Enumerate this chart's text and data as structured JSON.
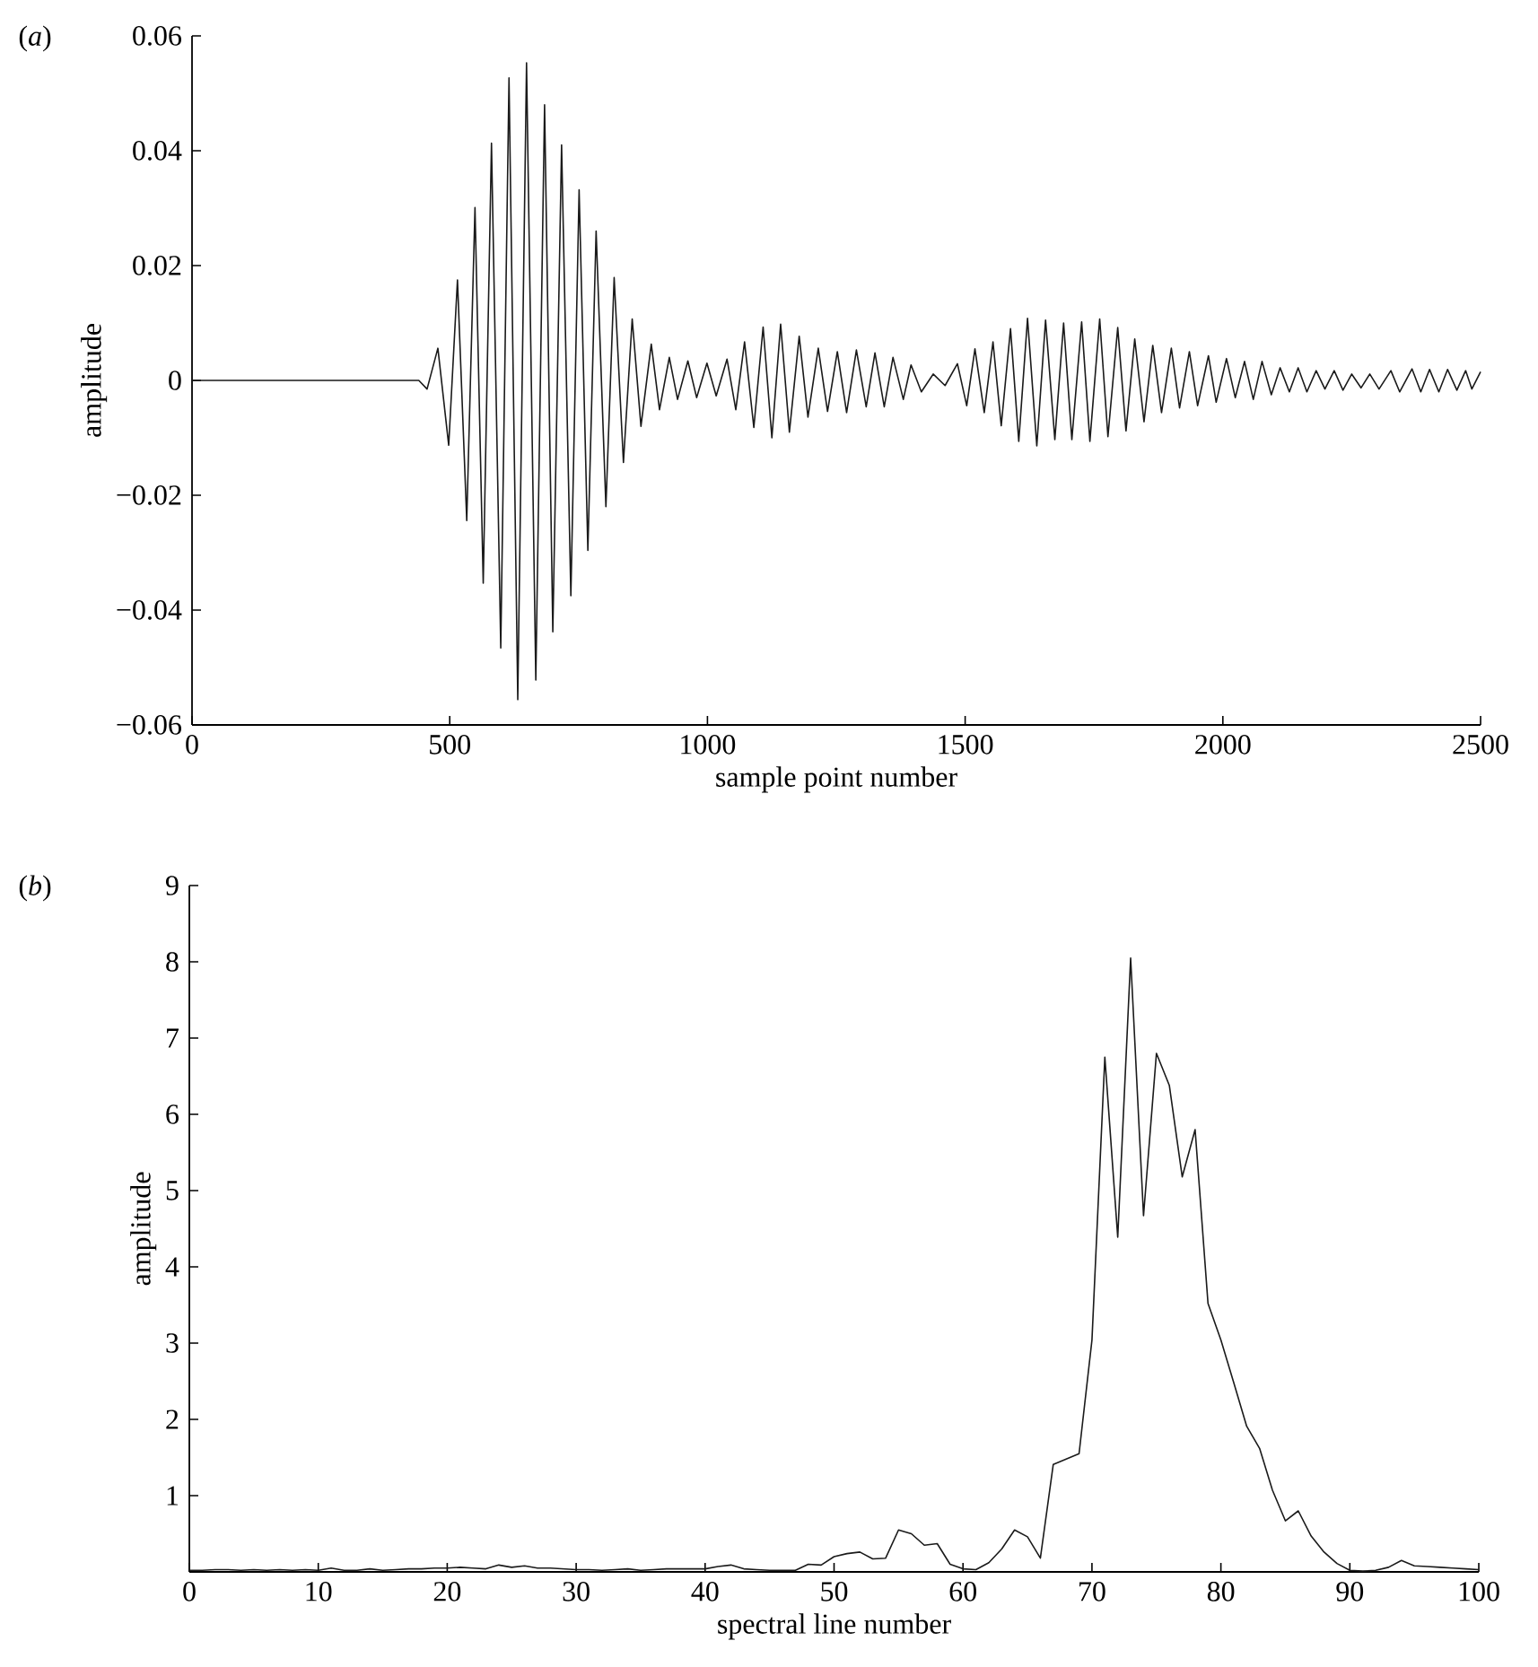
{
  "chart_data": [
    {
      "type": "line",
      "title": "(*a*)",
      "xlabel": "sample point number",
      "ylabel": "amplitude",
      "xlim": [
        0,
        2500
      ],
      "ylim": [
        -0.06,
        0.06
      ],
      "xticks": [
        0,
        500,
        1000,
        1500,
        2000,
        2500
      ],
      "yticks": [
        {
          "value": -0.06,
          "label": "−0.06"
        },
        {
          "value": -0.04,
          "label": "−0.04"
        },
        {
          "value": -0.02,
          "label": "−0.02"
        },
        0,
        0.02,
        0.04,
        0.06
      ],
      "marker": "none",
      "line_style": "solid",
      "x": [
        0,
        100,
        200,
        300,
        440,
        456,
        477,
        498,
        515,
        533,
        549,
        565,
        581,
        599,
        615,
        632,
        649,
        667,
        684,
        700,
        717,
        735,
        751,
        768,
        784,
        803,
        819,
        837,
        854,
        871,
        891,
        907,
        926,
        942,
        962,
        979,
        999,
        1017,
        1038,
        1055,
        1072,
        1090,
        1108,
        1125,
        1142,
        1159,
        1178,
        1195,
        1215,
        1233,
        1252,
        1270,
        1289,
        1308,
        1325,
        1343,
        1360,
        1380,
        1395,
        1415,
        1438,
        1461,
        1485,
        1503,
        1519,
        1537,
        1554,
        1570,
        1588,
        1604,
        1621,
        1639,
        1656,
        1674,
        1691,
        1707,
        1726,
        1742,
        1761,
        1777,
        1796,
        1812,
        1829,
        1847,
        1864,
        1881,
        1900,
        1916,
        1935,
        1951,
        1972,
        1987,
        2007,
        2024,
        2042,
        2059,
        2076,
        2094,
        2111,
        2129,
        2146,
        2163,
        2181,
        2198,
        2216,
        2233,
        2250,
        2268,
        2285,
        2303,
        2326,
        2343,
        2367,
        2384,
        2401,
        2419,
        2436,
        2454,
        2471,
        2483,
        2500
      ],
      "series": [
        {
          "color": "#1a1a1a",
          "values": [
            0,
            0,
            0,
            0,
            0,
            -0.0015,
            0.0056,
            -0.0113,
            0.0175,
            -0.0244,
            0.0301,
            -0.0353,
            0.0413,
            -0.0466,
            0.0527,
            -0.0556,
            0.0553,
            -0.0522,
            0.048,
            -0.0438,
            0.041,
            -0.0375,
            0.0332,
            -0.0296,
            0.026,
            -0.022,
            0.0179,
            -0.0143,
            0.0107,
            -0.008,
            0.0063,
            -0.0051,
            0.004,
            -0.0033,
            0.0034,
            -0.003,
            0.003,
            -0.0027,
            0.0037,
            -0.0051,
            0.0067,
            -0.0082,
            0.0093,
            -0.01,
            0.0098,
            -0.009,
            0.0077,
            -0.0064,
            0.0056,
            -0.0054,
            0.005,
            -0.0056,
            0.0053,
            -0.0046,
            0.0048,
            -0.0046,
            0.004,
            -0.0033,
            0.0027,
            -0.002,
            0.0011,
            -0.0009,
            0.0029,
            -0.0044,
            0.0055,
            -0.0056,
            0.0067,
            -0.0079,
            0.009,
            -0.0106,
            0.0108,
            -0.0114,
            0.0105,
            -0.0103,
            0.01,
            -0.0103,
            0.0102,
            -0.0106,
            0.0107,
            -0.0098,
            0.0092,
            -0.0088,
            0.0072,
            -0.0072,
            0.0061,
            -0.0056,
            0.0056,
            -0.0048,
            0.005,
            -0.0044,
            0.0043,
            -0.0038,
            0.0038,
            -0.003,
            0.0033,
            -0.0033,
            0.0033,
            -0.0025,
            0.0022,
            -0.002,
            0.0022,
            -0.002,
            0.0017,
            -0.0015,
            0.0017,
            -0.0017,
            0.0011,
            -0.0013,
            0.0011,
            -0.0015,
            0.0017,
            -0.002,
            0.002,
            -0.002,
            0.0019,
            -0.002,
            0.0019,
            -0.0017,
            0.0017,
            -0.0015,
            0.0015
          ]
        }
      ]
    },
    {
      "type": "line",
      "title": "(*b*)",
      "xlabel": "spectral line number",
      "ylabel": "amplitude",
      "xlim": [
        0,
        100
      ],
      "ylim": [
        0,
        9
      ],
      "xticks": [
        0,
        10,
        20,
        30,
        40,
        50,
        60,
        70,
        80,
        90,
        100
      ],
      "yticks": [
        {
          "value": 0,
          "label": null
        },
        1,
        2,
        3,
        4,
        5,
        6,
        7,
        8,
        9
      ],
      "marker": "none",
      "line_style": "solid",
      "x": [
        0,
        1,
        2,
        3,
        4,
        5,
        6,
        7,
        8,
        9,
        10,
        11,
        12,
        13,
        14,
        15,
        16,
        17,
        18,
        19,
        20,
        21,
        22,
        23,
        24,
        25,
        26,
        27,
        28,
        29,
        30,
        31,
        32,
        33,
        34,
        35,
        36,
        37,
        38,
        39,
        40,
        41,
        42,
        43,
        44,
        45,
        46,
        47,
        48,
        49,
        50,
        51,
        52,
        53,
        54,
        55,
        56,
        57,
        58,
        59,
        60,
        61,
        62,
        63,
        64,
        65,
        66,
        67,
        68,
        69,
        70,
        71,
        72,
        73,
        74,
        75,
        76,
        77,
        78,
        79,
        80,
        81,
        82,
        83,
        84,
        85,
        86,
        87,
        88,
        89,
        90,
        91,
        92,
        93,
        94,
        95,
        96,
        97,
        98,
        99,
        100
      ],
      "series": [
        {
          "color": "#1a1a1a",
          "values": [
            0.02,
            0.02,
            0.03,
            0.03,
            0.02,
            0.03,
            0.02,
            0.03,
            0.02,
            0.03,
            0.02,
            0.05,
            0.02,
            0.02,
            0.04,
            0.02,
            0.03,
            0.04,
            0.04,
            0.05,
            0.05,
            0.06,
            0.05,
            0.04,
            0.09,
            0.06,
            0.08,
            0.05,
            0.05,
            0.04,
            0.03,
            0.03,
            0.02,
            0.03,
            0.04,
            0.02,
            0.03,
            0.04,
            0.04,
            0.04,
            0.04,
            0.07,
            0.09,
            0.04,
            0.03,
            0.02,
            0.02,
            0.02,
            0.1,
            0.09,
            0.2,
            0.24,
            0.26,
            0.17,
            0.18,
            0.55,
            0.5,
            0.35,
            0.37,
            0.1,
            0.04,
            0.03,
            0.12,
            0.3,
            0.55,
            0.46,
            0.18,
            1.41,
            1.48,
            1.55,
            3.04,
            6.75,
            4.39,
            8.05,
            4.67,
            6.8,
            6.38,
            5.18,
            5.8,
            3.52,
            3.04,
            2.48,
            1.91,
            1.62,
            1.07,
            0.67,
            0.8,
            0.47,
            0.26,
            0.11,
            0.02,
            0.01,
            0.02,
            0.06,
            0.15,
            0.08,
            0.07,
            0.06,
            0.05,
            0.04,
            0.03
          ]
        }
      ]
    }
  ]
}
